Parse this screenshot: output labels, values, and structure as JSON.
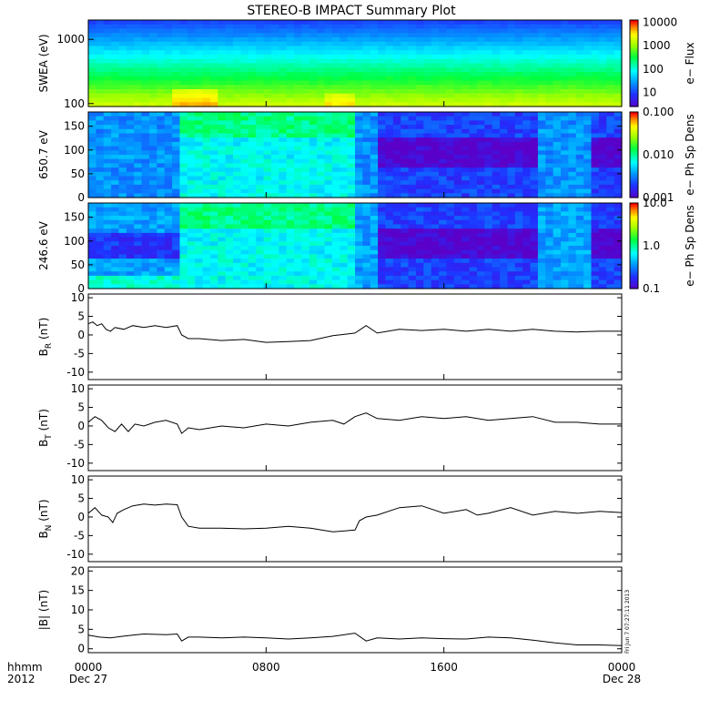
{
  "title": "STEREO-B IMPACT Summary Plot",
  "footer": {
    "x_label_top": "hhmm",
    "x_label_bottom": "2012",
    "stamp": "Fri Jun  7 07:27:11 2013"
  },
  "time_axis": {
    "range_hours": [
      0,
      24
    ],
    "ticks": [
      {
        "hour": 0,
        "label": "0000",
        "sub": "Dec 27"
      },
      {
        "hour": 8,
        "label": "0800",
        "sub": ""
      },
      {
        "hour": 16,
        "label": "1600",
        "sub": ""
      },
      {
        "hour": 24,
        "label": "0000",
        "sub": "Dec 28"
      }
    ]
  },
  "colors": {
    "line": "#000000",
    "frame": "#000000"
  },
  "chart_data": [
    {
      "type": "heatmap",
      "ylabel": "SWEA (eV)",
      "ylog": true,
      "yticks": [
        {
          "v": 100,
          "label": "100"
        },
        {
          "v": 1000,
          "label": "1000"
        }
      ],
      "colorbar": {
        "label": "e− Flux",
        "scale": "log",
        "range": [
          3,
          15000
        ],
        "ticks": [
          "10",
          "100",
          "1000",
          "10000"
        ]
      },
      "description_note": "energy spectrogram; flux increases toward low energies"
    },
    {
      "type": "heatmap",
      "ylabel": "650.7 eV",
      "ylim": [
        0,
        180
      ],
      "yticks": [
        "0",
        "50",
        "100",
        "150"
      ],
      "colorbar": {
        "label": "e− Ph Sp Dens",
        "scale": "log",
        "range": [
          0.001,
          0.1
        ],
        "ticks": [
          "0.001",
          "0.010",
          "0.100"
        ]
      }
    },
    {
      "type": "heatmap",
      "ylabel": "246.6 eV",
      "ylim": [
        0,
        180
      ],
      "yticks": [
        "0",
        "50",
        "100",
        "150"
      ],
      "colorbar": {
        "label": "e− Ph Sp Dens",
        "scale": "log",
        "range": [
          0.1,
          10
        ],
        "ticks": [
          "0.1",
          "1.0",
          "10.0"
        ]
      }
    },
    {
      "type": "line",
      "ylabel": "B_R (nT)",
      "ylim": [
        -12,
        11
      ],
      "yticks": [
        "-10",
        "-5",
        "0",
        "5",
        "10"
      ],
      "x": [
        0,
        0.2,
        0.4,
        0.6,
        0.8,
        1.0,
        1.2,
        1.6,
        2.0,
        2.5,
        3.0,
        3.5,
        4.0,
        4.2,
        4.5,
        5.0,
        6.0,
        7.0,
        8.0,
        9.0,
        10.0,
        11.0,
        12.0,
        12.5,
        13.0,
        14.0,
        15.0,
        16.0,
        17.0,
        18.0,
        19.0,
        20.0,
        21.0,
        22.0,
        23.0,
        24.0
      ],
      "values": [
        3.0,
        3.5,
        2.5,
        3.0,
        1.5,
        1.0,
        2.0,
        1.5,
        2.5,
        2.0,
        2.5,
        2.0,
        2.5,
        0.0,
        -1.0,
        -1.0,
        -1.5,
        -1.2,
        -2.0,
        -1.8,
        -1.5,
        -0.2,
        0.5,
        2.5,
        0.5,
        1.5,
        1.2,
        1.5,
        1.0,
        1.5,
        1.0,
        1.5,
        1.0,
        0.8,
        1.0,
        1.0
      ]
    },
    {
      "type": "line",
      "ylabel": "B_T (nT)",
      "ylim": [
        -12,
        11
      ],
      "yticks": [
        "-10",
        "-5",
        "0",
        "5",
        "10"
      ],
      "x": [
        0,
        0.3,
        0.6,
        0.9,
        1.2,
        1.5,
        1.8,
        2.1,
        2.5,
        3.0,
        3.5,
        4.0,
        4.2,
        4.5,
        5.0,
        6.0,
        7.0,
        8.0,
        9.0,
        10.0,
        11.0,
        11.5,
        12.0,
        12.5,
        13.0,
        14.0,
        15.0,
        16.0,
        17.0,
        18.0,
        19.0,
        20.0,
        21.0,
        22.0,
        23.0,
        24.0
      ],
      "values": [
        1.0,
        2.5,
        1.5,
        -0.5,
        -1.5,
        0.5,
        -1.5,
        0.5,
        0.0,
        1.0,
        1.5,
        0.5,
        -2.0,
        -0.5,
        -1.0,
        0.0,
        -0.5,
        0.5,
        0.0,
        1.0,
        1.5,
        0.5,
        2.5,
        3.5,
        2.0,
        1.5,
        2.5,
        2.0,
        2.5,
        1.5,
        2.0,
        2.5,
        1.0,
        1.0,
        0.5,
        0.5
      ]
    },
    {
      "type": "line",
      "ylabel": "B_N (nT)",
      "ylim": [
        -12,
        11
      ],
      "yticks": [
        "-10",
        "-5",
        "0",
        "5",
        "10"
      ],
      "x": [
        0,
        0.3,
        0.6,
        0.9,
        1.1,
        1.3,
        1.6,
        2.0,
        2.5,
        3.0,
        3.5,
        4.0,
        4.2,
        4.5,
        5.0,
        6.0,
        7.0,
        8.0,
        9.0,
        10.0,
        11.0,
        12.0,
        12.2,
        12.5,
        13.0,
        14.0,
        15.0,
        16.0,
        17.0,
        17.5,
        18.0,
        19.0,
        20.0,
        21.0,
        22.0,
        23.0,
        24.0
      ],
      "values": [
        1.0,
        2.5,
        0.5,
        0.0,
        -1.5,
        1.0,
        2.0,
        3.0,
        3.5,
        3.2,
        3.5,
        3.3,
        0.0,
        -2.5,
        -3.0,
        -3.0,
        -3.2,
        -3.0,
        -2.5,
        -3.0,
        -4.0,
        -3.5,
        -1.0,
        0.0,
        0.5,
        2.5,
        3.0,
        1.0,
        2.0,
        0.5,
        1.0,
        2.5,
        0.5,
        1.5,
        1.0,
        1.5,
        1.2
      ]
    },
    {
      "type": "line",
      "ylabel": "|B| (nT)",
      "ylim": [
        -1,
        21
      ],
      "yticks": [
        "0",
        "5",
        "10",
        "15",
        "20"
      ],
      "x": [
        0,
        0.5,
        1.0,
        1.5,
        2.0,
        2.5,
        3.0,
        3.5,
        4.0,
        4.2,
        4.5,
        5.0,
        6.0,
        7.0,
        8.0,
        9.0,
        10.0,
        11.0,
        12.0,
        12.5,
        13.0,
        14.0,
        15.0,
        16.0,
        17.0,
        18.0,
        19.0,
        20.0,
        21.0,
        22.0,
        23.0,
        24.0
      ],
      "values": [
        3.5,
        3.0,
        2.8,
        3.2,
        3.5,
        3.8,
        3.7,
        3.6,
        3.8,
        2.0,
        3.0,
        3.0,
        2.8,
        3.0,
        2.8,
        2.5,
        2.8,
        3.2,
        4.0,
        2.0,
        2.8,
        2.5,
        2.8,
        2.6,
        2.5,
        3.0,
        2.8,
        2.2,
        1.5,
        1.0,
        1.0,
        0.8
      ]
    }
  ]
}
